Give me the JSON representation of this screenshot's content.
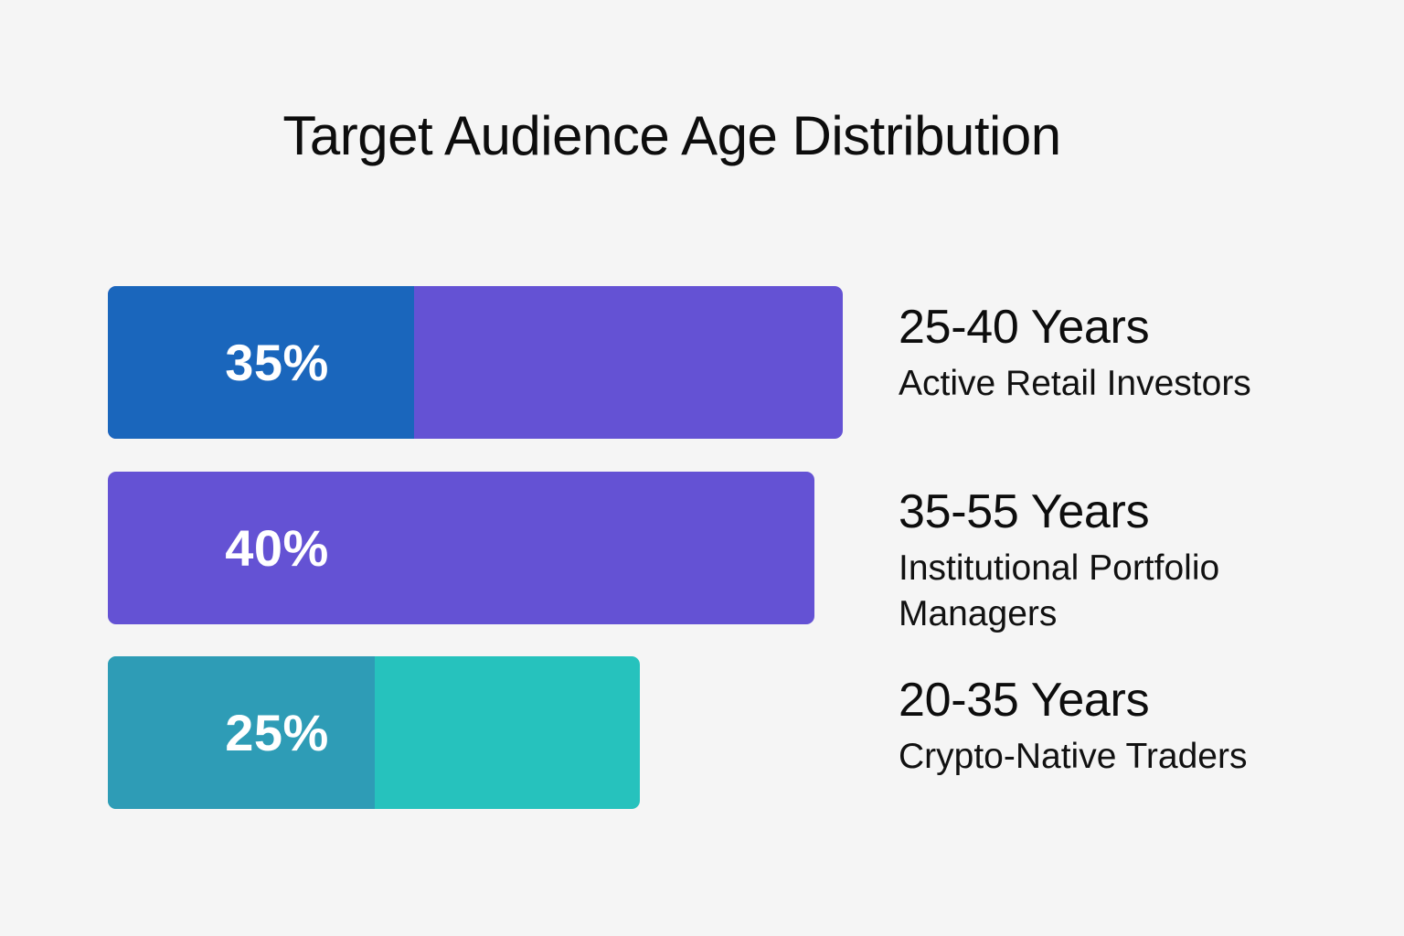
{
  "chart_data": {
    "type": "bar",
    "orientation": "horizontal",
    "title": "Target Audience Age Distribution",
    "xlim": [
      0,
      100
    ],
    "grid": false,
    "categories": [
      "25-40 Years",
      "35-55 Years",
      "20-35 Years"
    ],
    "values": [
      35,
      40,
      25
    ],
    "value_labels": [
      "35%",
      "40%",
      "25%"
    ],
    "descriptions": [
      "Active Retail Investors",
      "Institutional Portfolio Managers",
      "Crypto-Native Traders"
    ],
    "colors": {
      "bar_1_fill": "#6452d4",
      "bar_1_segment": "#1a66bc",
      "bar_2_fill": "#6452d4",
      "bar_3_fill": "#26c2bd",
      "bar_3_segment": "#2e9cb6",
      "label_text": "#ffffff"
    }
  }
}
